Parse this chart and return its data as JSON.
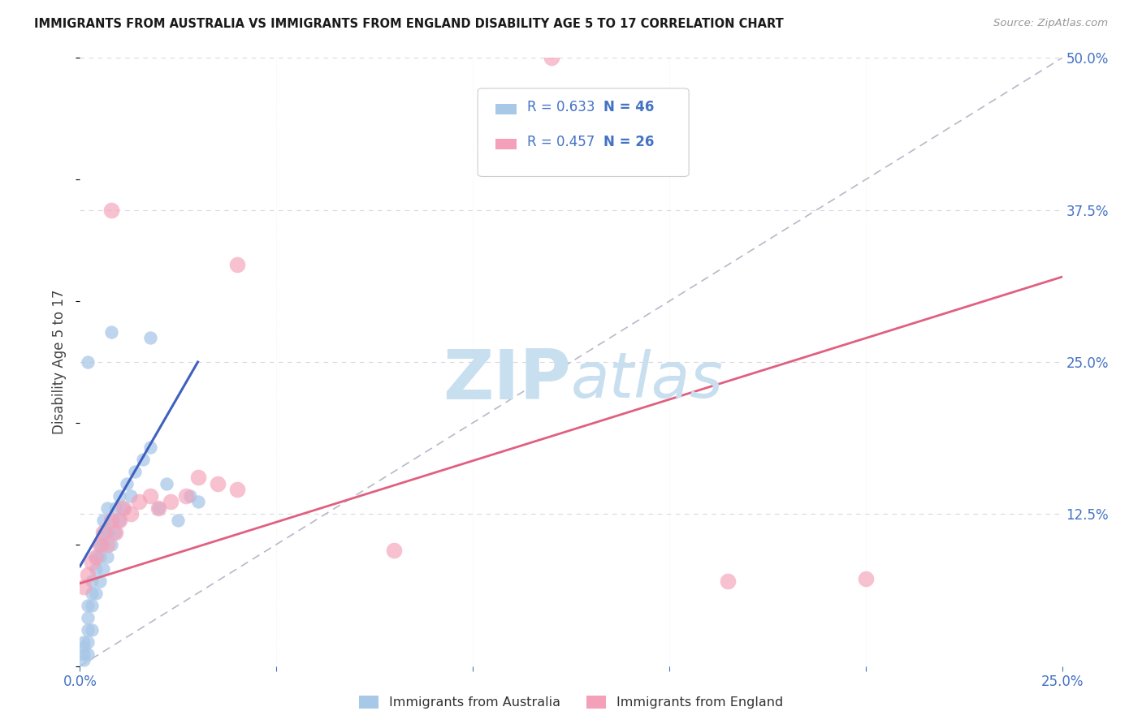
{
  "title": "IMMIGRANTS FROM AUSTRALIA VS IMMIGRANTS FROM ENGLAND DISABILITY AGE 5 TO 17 CORRELATION CHART",
  "source": "Source: ZipAtlas.com",
  "ylabel": "Disability Age 5 to 17",
  "xlim": [
    0.0,
    0.25
  ],
  "ylim": [
    0.0,
    0.5
  ],
  "australia_color": "#a8c8e8",
  "england_color": "#f4a0b8",
  "trend_australia_color": "#4060c0",
  "trend_england_color": "#e06080",
  "diagonal_color": "#b8b8c8",
  "watermark_zip_color": "#c8dff0",
  "watermark_atlas_color": "#c8dff0",
  "background_color": "#ffffff",
  "grid_color": "#d8d8e0",
  "legend_R_australia": "R = 0.633",
  "legend_N_australia": "N = 46",
  "legend_R_england": "R = 0.457",
  "legend_N_england": "N = 26",
  "aus_x": [
    0.001,
    0.001,
    0.001,
    0.001,
    0.002,
    0.002,
    0.002,
    0.002,
    0.002,
    0.003,
    0.003,
    0.003,
    0.003,
    0.004,
    0.004,
    0.004,
    0.005,
    0.005,
    0.005,
    0.006,
    0.006,
    0.006,
    0.006,
    0.007,
    0.007,
    0.007,
    0.008,
    0.008,
    0.009,
    0.009,
    0.01,
    0.01,
    0.011,
    0.012,
    0.013,
    0.014,
    0.016,
    0.018,
    0.02,
    0.022,
    0.025,
    0.028,
    0.03,
    0.002,
    0.008,
    0.018
  ],
  "aus_y": [
    0.005,
    0.01,
    0.015,
    0.02,
    0.01,
    0.02,
    0.03,
    0.04,
    0.05,
    0.03,
    0.05,
    0.06,
    0.07,
    0.06,
    0.08,
    0.09,
    0.07,
    0.09,
    0.1,
    0.08,
    0.1,
    0.11,
    0.12,
    0.09,
    0.11,
    0.13,
    0.1,
    0.12,
    0.11,
    0.13,
    0.12,
    0.14,
    0.13,
    0.15,
    0.14,
    0.16,
    0.17,
    0.18,
    0.13,
    0.15,
    0.12,
    0.14,
    0.135,
    0.25,
    0.275,
    0.27
  ],
  "eng_x": [
    0.001,
    0.002,
    0.003,
    0.004,
    0.005,
    0.006,
    0.007,
    0.008,
    0.009,
    0.01,
    0.011,
    0.013,
    0.015,
    0.018,
    0.02,
    0.023,
    0.027,
    0.03,
    0.035,
    0.04,
    0.008,
    0.04,
    0.08,
    0.12,
    0.165,
    0.2
  ],
  "eng_y": [
    0.065,
    0.075,
    0.085,
    0.09,
    0.1,
    0.11,
    0.1,
    0.12,
    0.11,
    0.12,
    0.13,
    0.125,
    0.135,
    0.14,
    0.13,
    0.135,
    0.14,
    0.155,
    0.15,
    0.145,
    0.375,
    0.33,
    0.095,
    0.5,
    0.07,
    0.072
  ],
  "aus_trend_x0": 0.0,
  "aus_trend_x1": 0.03,
  "aus_trend_y0": 0.082,
  "aus_trend_y1": 0.25,
  "eng_trend_x0": 0.0,
  "eng_trend_x1": 0.25,
  "eng_trend_y0": 0.068,
  "eng_trend_y1": 0.32,
  "figsize": [
    14.06,
    8.92
  ],
  "dpi": 100
}
